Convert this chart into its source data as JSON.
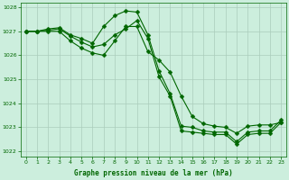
{
  "bg_color": "#cceedd",
  "grid_color": "#aaccbb",
  "line_color": "#006600",
  "title": "Graphe pression niveau de la mer (hPa)",
  "xlim": [
    -0.5,
    23.5
  ],
  "ylim": [
    1021.8,
    1028.2
  ],
  "yticks": [
    1022,
    1023,
    1024,
    1025,
    1026,
    1027,
    1028
  ],
  "xticks": [
    0,
    1,
    2,
    3,
    4,
    5,
    6,
    7,
    8,
    9,
    10,
    11,
    12,
    13,
    14,
    15,
    16,
    17,
    18,
    19,
    20,
    21,
    22,
    23
  ],
  "series1_x": [
    0,
    1,
    2,
    3,
    4,
    5,
    6,
    7,
    8,
    9,
    10,
    11,
    12,
    13,
    14,
    15,
    16,
    17,
    18,
    19,
    20,
    21,
    22,
    23
  ],
  "series1_y": [
    1027.0,
    1027.0,
    1027.1,
    1027.15,
    1026.85,
    1026.7,
    1026.5,
    1027.2,
    1027.65,
    1027.85,
    1027.8,
    1026.85,
    1025.35,
    1024.4,
    1023.05,
    1023.0,
    1022.85,
    1022.8,
    1022.8,
    1022.4,
    1022.8,
    1022.85,
    1022.85,
    1023.3
  ],
  "series2_x": [
    0,
    1,
    2,
    3,
    4,
    5,
    6,
    7,
    8,
    9,
    10,
    11,
    12,
    13,
    14,
    15,
    16,
    17,
    18,
    19,
    20,
    21,
    22,
    23
  ],
  "series2_y": [
    1027.0,
    1027.0,
    1027.05,
    1027.1,
    1026.8,
    1026.55,
    1026.35,
    1026.45,
    1026.85,
    1027.1,
    1027.45,
    1026.7,
    1025.1,
    1024.3,
    1022.85,
    1022.8,
    1022.75,
    1022.7,
    1022.7,
    1022.3,
    1022.7,
    1022.75,
    1022.75,
    1023.2
  ],
  "series3_x": [
    0,
    1,
    2,
    3,
    4,
    5,
    6,
    7,
    8,
    9,
    10,
    11,
    12,
    13,
    14,
    15,
    16,
    17,
    18,
    19,
    20,
    21,
    22,
    23
  ],
  "series3_y": [
    1027.0,
    1027.0,
    1027.0,
    1027.0,
    1026.6,
    1026.3,
    1026.1,
    1026.0,
    1026.6,
    1027.2,
    1027.2,
    1026.15,
    1025.8,
    1025.3,
    1024.3,
    1023.45,
    1023.15,
    1023.05,
    1023.0,
    1022.75,
    1023.05,
    1023.1,
    1023.1,
    1023.2
  ],
  "markersize": 2.5
}
